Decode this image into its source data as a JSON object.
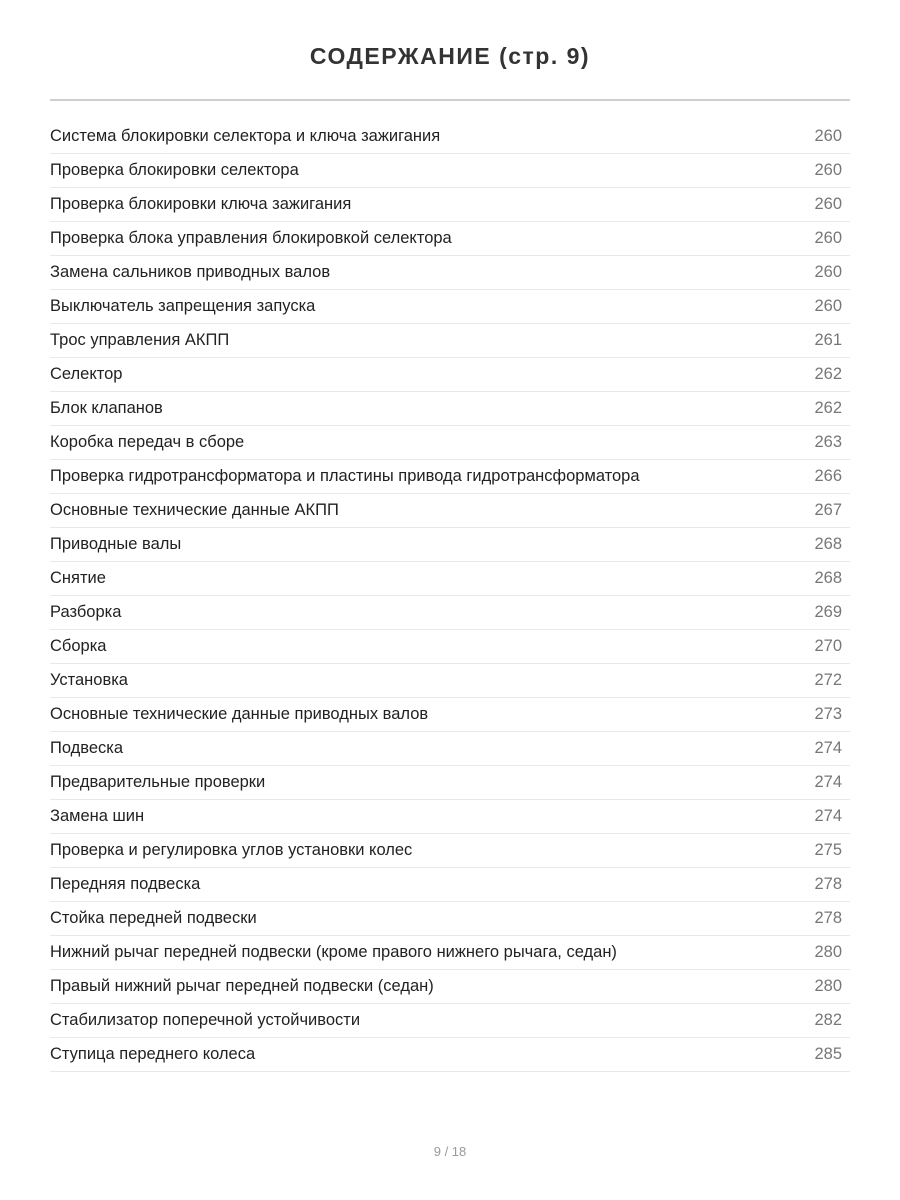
{
  "title": "СОДЕРЖАНИЕ (стр. 9)",
  "entries": [
    {
      "title": "Система блокировки селектора и ключа зажигания",
      "page": "260"
    },
    {
      "title": "Проверка блокировки селектора",
      "page": "260"
    },
    {
      "title": "Проверка блокировки ключа зажигания",
      "page": "260"
    },
    {
      "title": "Проверка блока управления блокировкой селектора",
      "page": "260"
    },
    {
      "title": "Замена сальников приводных валов",
      "page": "260"
    },
    {
      "title": "Выключатель запрещения запуска",
      "page": "260"
    },
    {
      "title": "Трос управления АКПП",
      "page": "261"
    },
    {
      "title": "Селектор",
      "page": "262"
    },
    {
      "title": "Блок клапанов",
      "page": "262"
    },
    {
      "title": "Коробка передач в сборе",
      "page": "263"
    },
    {
      "title": "Проверка гидротрансформатора и пластины привода гидротрансформатора",
      "page": "266"
    },
    {
      "title": "Основные технические данные АКПП",
      "page": "267"
    },
    {
      "title": "Приводные валы",
      "page": "268"
    },
    {
      "title": "Снятие",
      "page": "268"
    },
    {
      "title": "Разборка",
      "page": "269"
    },
    {
      "title": "Сборка",
      "page": "270"
    },
    {
      "title": "Установка",
      "page": "272"
    },
    {
      "title": "Основные технические данные приводных валов",
      "page": "273"
    },
    {
      "title": "Подвеска",
      "page": "274"
    },
    {
      "title": "Предварительные проверки",
      "page": "274"
    },
    {
      "title": "Замена шин",
      "page": "274"
    },
    {
      "title": "Проверка и регулировка углов установки колес",
      "page": "275"
    },
    {
      "title": "Передняя подвеска",
      "page": "278"
    },
    {
      "title": "Стойка передней подвески",
      "page": "278"
    },
    {
      "title": "Нижний рычаг передней подвески (кроме правого нижнего рычага, седан)",
      "page": "280"
    },
    {
      "title": "Правый нижний рычаг передней подвески (седан)",
      "page": "280"
    },
    {
      "title": "Стабилизатор поперечной устойчивости",
      "page": "282"
    },
    {
      "title": "Ступица переднего колеса",
      "page": "285"
    }
  ],
  "footer": "9 / 18"
}
